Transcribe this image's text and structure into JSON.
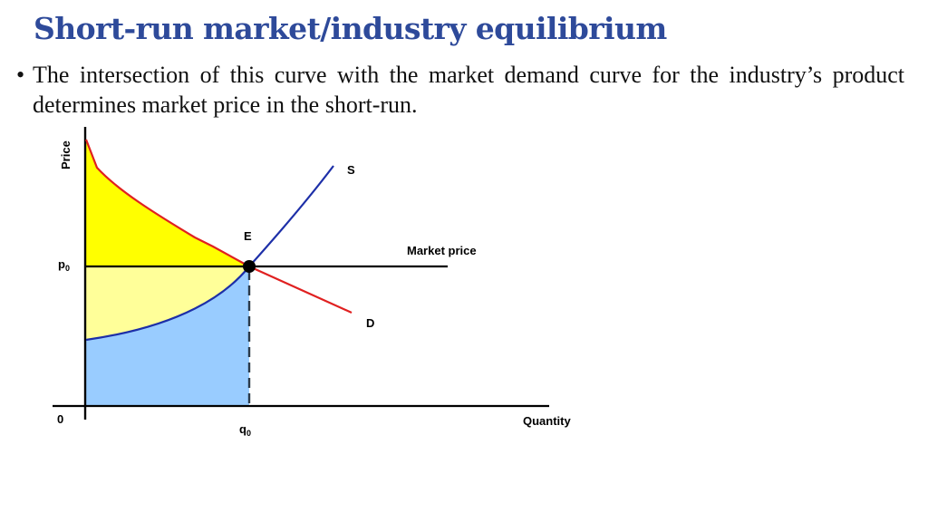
{
  "slide": {
    "title": "Short-run market/industry equilibrium",
    "bullet": "The intersection of this curve with the market demand curve for the industry’s product determines market price in the short-run."
  },
  "colors": {
    "title": "#2e4a9a",
    "demand_curve": "#e02020",
    "supply_curve": "#1d2fa8",
    "consumer_surplus": "#ffff00",
    "producer_surplus": "#ffff99",
    "cost_area": "#99ccff",
    "axes": "#000000"
  },
  "diagram": {
    "y_axis_label": "Price",
    "x_axis_label": "Quantity",
    "origin_label": "0",
    "price_label": "p",
    "price_sub": "0",
    "quantity_label": "q",
    "quantity_sub": "0",
    "supply_label": "S",
    "demand_label": "D",
    "equilibrium_label": "E",
    "market_price_label": "Market price"
  }
}
